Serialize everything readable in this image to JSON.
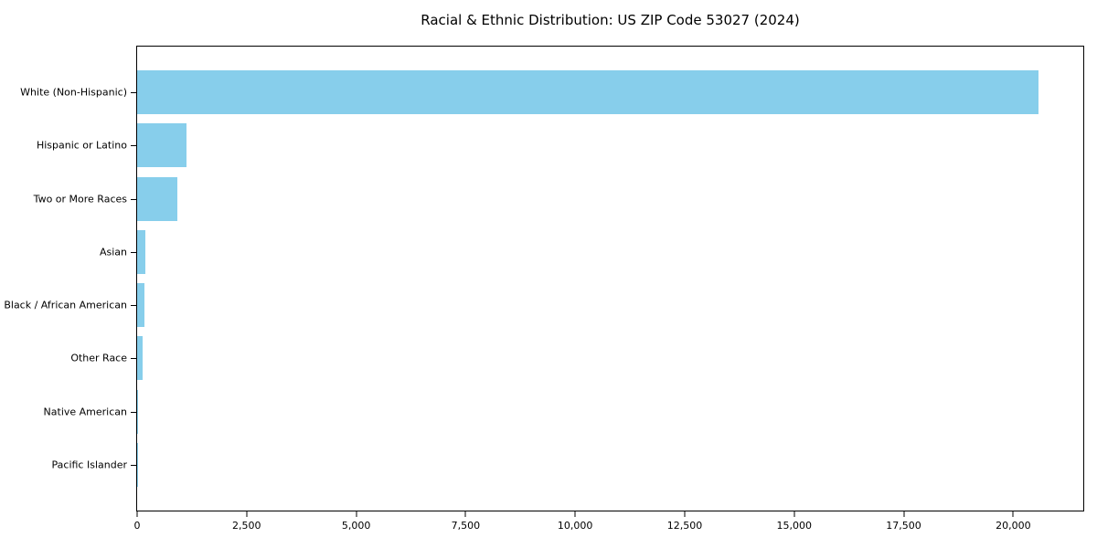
{
  "chart": {
    "title": "Racial & Ethnic Distribution: US ZIP Code 53027 (2024)"
  },
  "chart_data": {
    "type": "bar",
    "orientation": "horizontal",
    "title": "Racial & Ethnic Distribution: US ZIP Code 53027 (2024)",
    "xlabel": "",
    "ylabel": "",
    "categories": [
      "White (Non-Hispanic)",
      "Hispanic or Latino",
      "Two or More Races",
      "Asian",
      "Black / African American",
      "Other Race",
      "Native American",
      "Pacific Islander"
    ],
    "values": [
      20580,
      1125,
      915,
      180,
      160,
      120,
      30,
      5
    ],
    "bar_color": "#87CEEB",
    "xlim": [
      0,
      21600
    ],
    "x_ticks": [
      0,
      2500,
      5000,
      7500,
      10000,
      12500,
      15000,
      17500,
      20000
    ],
    "x_tick_labels": [
      "0",
      "2,500",
      "5,000",
      "7,500",
      "10,000",
      "12,500",
      "15,000",
      "17,500",
      "20,000"
    ],
    "grid": false,
    "legend": "none"
  }
}
